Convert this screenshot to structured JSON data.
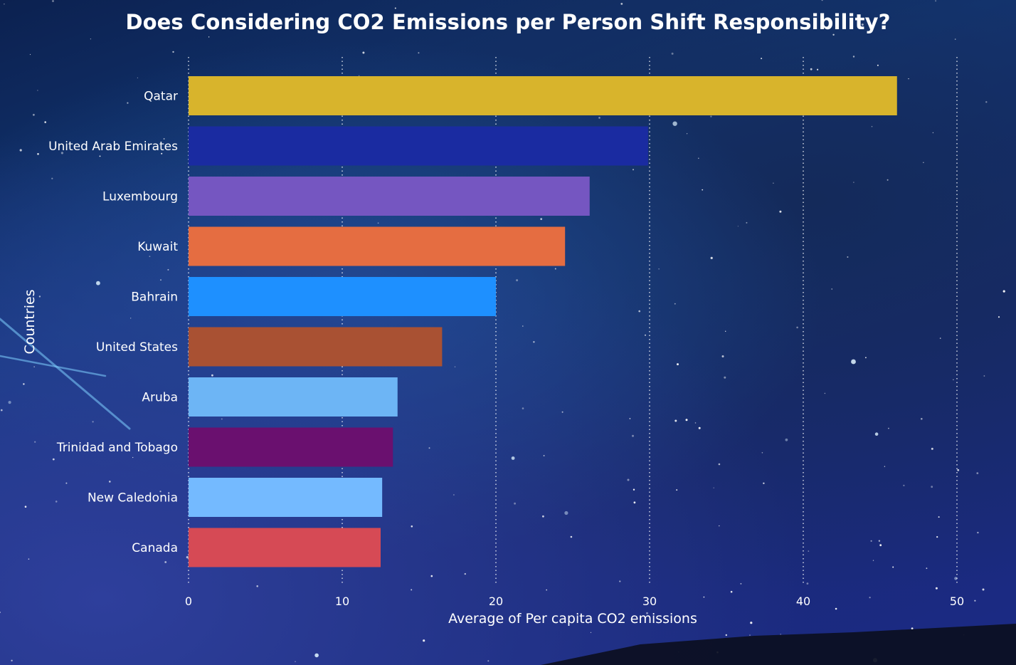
{
  "chart_data": {
    "type": "bar",
    "orientation": "horizontal",
    "title": "Does Considering CO2 Emissions per Person Shift Responsibility?",
    "xlabel": "Average of Per capita CO2 emissions",
    "ylabel": "Countries",
    "xlim": [
      0,
      52
    ],
    "xticks": [
      0,
      10,
      20,
      30,
      40,
      50
    ],
    "grid": "vertical dotted",
    "categories": [
      "Qatar",
      "United Arab Emirates",
      "Luxembourg",
      "Kuwait",
      "Bahrain",
      "United States",
      "Aruba",
      "Trinidad and Tobago",
      "New Caledonia",
      "Canada"
    ],
    "values": [
      46.1,
      29.9,
      26.1,
      24.5,
      20.0,
      16.5,
      13.6,
      13.3,
      12.6,
      12.5
    ],
    "colors": [
      "#D8B42C",
      "#1A2BA1",
      "#7556C1",
      "#E56D41",
      "#1E90FF",
      "#A95133",
      "#6DB5F5",
      "#6A106F",
      "#74BAFF",
      "#D64A55"
    ]
  }
}
